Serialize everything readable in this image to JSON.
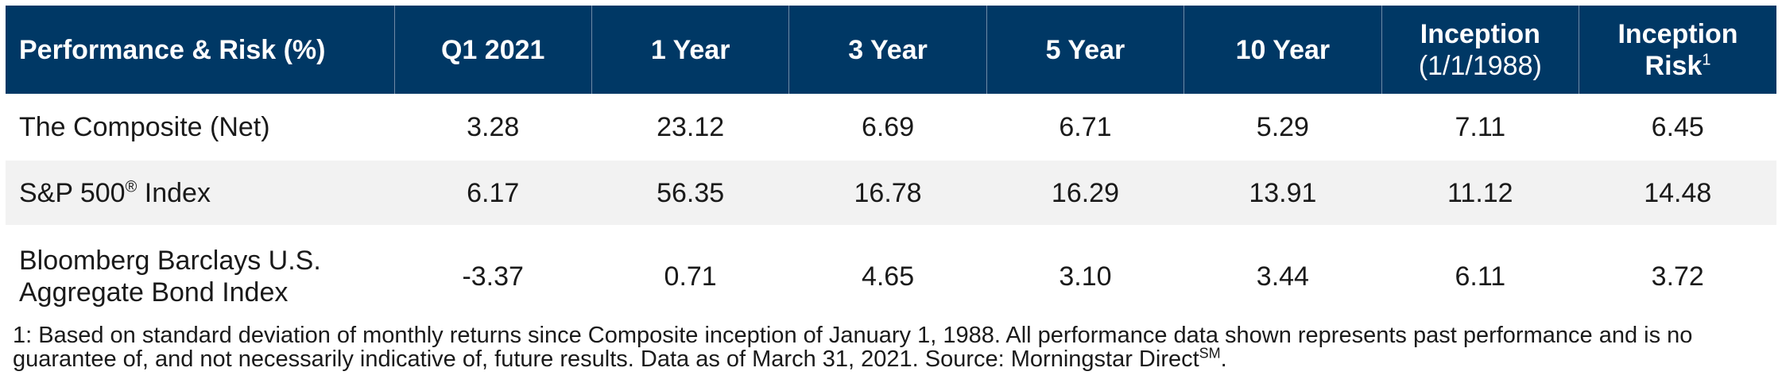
{
  "table": {
    "headers": [
      {
        "main": "Performance & Risk (%)",
        "sub": "",
        "sup": ""
      },
      {
        "main": "Q1 2021",
        "sub": "",
        "sup": ""
      },
      {
        "main": "1 Year",
        "sub": "",
        "sup": ""
      },
      {
        "main": "3 Year",
        "sub": "",
        "sup": ""
      },
      {
        "main": "5 Year",
        "sub": "",
        "sup": ""
      },
      {
        "main": "10 Year",
        "sub": "",
        "sup": ""
      },
      {
        "main": "Inception",
        "sub": "(1/1/1988)",
        "sup": ""
      },
      {
        "main": "Inception",
        "sub": "Risk",
        "sup": "1"
      }
    ],
    "rows": [
      {
        "name": "The Composite (Net)",
        "name_sup": "",
        "name_suffix": "",
        "values": [
          "3.28",
          "23.12",
          "6.69",
          "6.71",
          "5.29",
          "7.11",
          "6.45"
        ]
      },
      {
        "name": "S&P 500",
        "name_sup": "®",
        "name_suffix": " Index",
        "values": [
          "6.17",
          "56.35",
          "16.78",
          "16.29",
          "13.91",
          "11.12",
          "14.48"
        ]
      },
      {
        "name": "Bloomberg Barclays U.S.",
        "name_line2": "Aggregate Bond Index",
        "values": [
          "-3.37",
          "0.71",
          "4.65",
          "3.10",
          "3.44",
          "6.11",
          "3.72"
        ]
      }
    ]
  },
  "footnote": {
    "text": "1: Based on standard deviation of monthly returns since Composite inception of January 1, 1988. All performance data shown represents past performance and is no guarantee of, and not necessarily indicative of, future results. Data as of March 31, 2021. Source: Morningstar Direct",
    "sup": "SM",
    "end": "."
  }
}
